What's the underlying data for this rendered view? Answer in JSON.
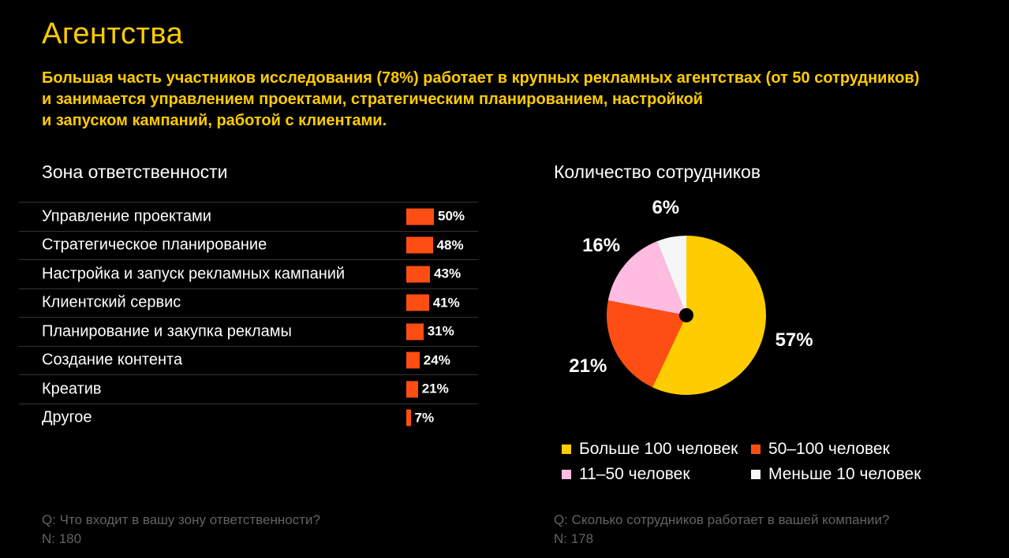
{
  "slide": {
    "title": "Агентства",
    "subtitle": "Большая часть участников исследования (78%) работает в крупных рекламных агентствах (от 50 сотрудников)\nи занимается управлением проектами, стратегическим планированием, настройкой\nи запуском кампаний, работой с клиентами."
  },
  "colors": {
    "background": "#000000",
    "accent_yellow": "#ffcc00",
    "bar_orange": "#ff4e14",
    "divider": "#333333",
    "footnote_gray": "#636363"
  },
  "chart_data": [
    {
      "type": "bar",
      "title": "Зона ответственности",
      "orientation": "horizontal",
      "unit": "%",
      "categories": [
        "Управление проектами",
        "Стратегическое планирование",
        "Настройка и запуск рекламных кампаний",
        "Клиентский сервис",
        "Планирование и закупка рекламы",
        "Создание контента",
        "Креатив",
        "Другое"
      ],
      "values": [
        50,
        48,
        43,
        41,
        31,
        24,
        21,
        7
      ],
      "value_labels": [
        "50%",
        "48%",
        "43%",
        "41%",
        "31%",
        "24%",
        "21%",
        "7%"
      ],
      "bar_color": "#ff4e14",
      "footnote_question": "Q: Что входит в вашу зону ответственности?",
      "footnote_n": "N: 180"
    },
    {
      "type": "pie",
      "title": "Количество сотрудников",
      "start_angle_deg": 0,
      "direction": "clockwise",
      "legend_position": "bottom",
      "slices": [
        {
          "label": "Больше 100 человек",
          "value": 57,
          "display": "57%",
          "color": "#ffcc00"
        },
        {
          "label": "50–100 человек",
          "value": 21,
          "display": "21%",
          "color": "#ff4e14"
        },
        {
          "label": "11–50 человек",
          "value": 16,
          "display": "16%",
          "color": "#ffbce0"
        },
        {
          "label": "Меньше 10 человек",
          "value": 6,
          "display": "6%",
          "color": "#f5f6f7"
        }
      ],
      "footnote_question": "Q: Сколько сотрудников работает в вашей компании?",
      "footnote_n": "N: 178"
    }
  ]
}
